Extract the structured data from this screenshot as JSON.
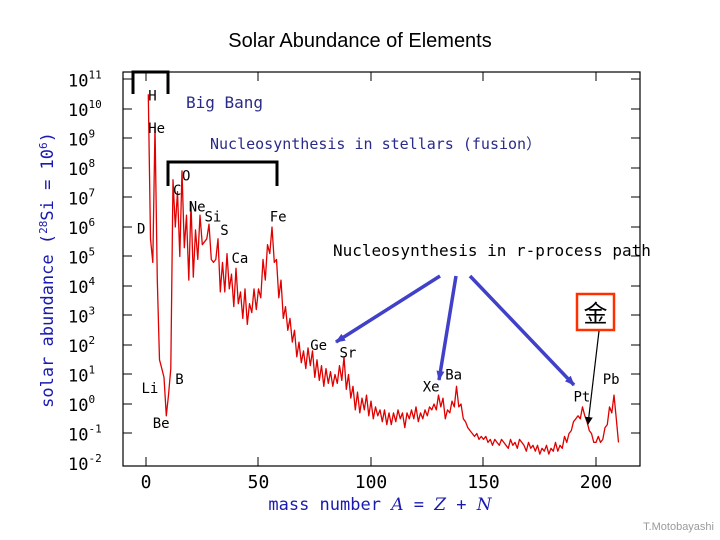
{
  "slide": {
    "title": "Solar Abundance of Elements",
    "credit": "T.Motobayashi"
  },
  "colors": {
    "curve": "#e00000",
    "arrows": "#4040c8",
    "gold_box": "#ff3000",
    "annotation_text": "#2a2a8a",
    "axis_label": "#1a1ab0"
  },
  "annotations": {
    "big_bang": "Big Bang",
    "fusion": "Nucleosynthesis in stellars (fusion）",
    "r_process": "Nucleosynthesis in r-process path",
    "gold": "金"
  },
  "chart_data": {
    "type": "line",
    "title": "Solar Abundance of Elements",
    "xlabel": "mass number A = Z + N",
    "ylabel": "solar abundance (28Si = 10^6)",
    "xlim": [
      -10,
      220
    ],
    "ylim": [
      -2,
      11
    ],
    "x_ticks": [
      "0",
      "50",
      "100",
      "150",
      "200"
    ],
    "x_tick_values": [
      0,
      50,
      100,
      150,
      200
    ],
    "y_ticks": [
      "10^11",
      "10^10",
      "10^9",
      "10^8",
      "10^7",
      "10^6",
      "10^5",
      "10^4",
      "10^3",
      "10^2",
      "10^1",
      "10^0",
      "10^-1",
      "10^-2"
    ],
    "y_tick_values": [
      11,
      10,
      9,
      8,
      7,
      6,
      5,
      4,
      3,
      2,
      1,
      0,
      -1,
      -2
    ],
    "element_labels": [
      {
        "label": "H",
        "x": 1,
        "y": 10.45
      },
      {
        "label": "He",
        "x": 1,
        "y": 9.35
      },
      {
        "label": "O",
        "x": 16,
        "y": 7.75
      },
      {
        "label": "C",
        "x": 12,
        "y": 7.25
      },
      {
        "label": "Ne",
        "x": 19,
        "y": 6.7
      },
      {
        "label": "Si",
        "x": 26,
        "y": 6.35
      },
      {
        "label": "S",
        "x": 33,
        "y": 5.9
      },
      {
        "label": "Fe",
        "x": 55,
        "y": 6.35
      },
      {
        "label": "D",
        "x": -4,
        "y": 5.95
      },
      {
        "label": "Ca",
        "x": 38,
        "y": 4.95
      },
      {
        "label": "Ge",
        "x": 73,
        "y": 2.0
      },
      {
        "label": "Sr",
        "x": 86,
        "y": 1.75
      },
      {
        "label": "Li",
        "x": -2,
        "y": 0.55
      },
      {
        "label": "B",
        "x": 13,
        "y": 0.85
      },
      {
        "label": "Be",
        "x": 3,
        "y": -0.65
      },
      {
        "label": "Ba",
        "x": 133,
        "y": 1.0
      },
      {
        "label": "Xe",
        "x": 123,
        "y": 0.6
      },
      {
        "label": "Pb",
        "x": 203,
        "y": 0.85
      },
      {
        "label": "Pt",
        "x": 190,
        "y": 0.25
      }
    ],
    "series": [
      {
        "name": "abundance",
        "points": [
          [
            1,
            10.5
          ],
          [
            2,
            5.6
          ],
          [
            3,
            4.8
          ],
          [
            4,
            9.4
          ],
          [
            5,
            4.2
          ],
          [
            6,
            1.5
          ],
          [
            7,
            1.2
          ],
          [
            8,
            0.9
          ],
          [
            9,
            -0.4
          ],
          [
            10,
            0.3
          ],
          [
            11,
            1.2
          ],
          [
            12,
            7.6
          ],
          [
            13,
            6.0
          ],
          [
            14,
            7.2
          ],
          [
            15,
            5.0
          ],
          [
            16,
            7.9
          ],
          [
            17,
            5.3
          ],
          [
            18,
            6.4
          ],
          [
            19,
            4.2
          ],
          [
            20,
            6.8
          ],
          [
            21,
            4.3
          ],
          [
            22,
            5.9
          ],
          [
            23,
            4.9
          ],
          [
            24,
            6.4
          ],
          [
            25,
            5.4
          ],
          [
            26,
            5.5
          ],
          [
            27,
            5.6
          ],
          [
            28,
            6.1
          ],
          [
            29,
            4.9
          ],
          [
            30,
            4.8
          ],
          [
            31,
            4.9
          ],
          [
            32,
            5.6
          ],
          [
            33,
            3.8
          ],
          [
            34,
            4.8
          ],
          [
            35,
            3.8
          ],
          [
            36,
            5.1
          ],
          [
            37,
            3.9
          ],
          [
            38,
            4.4
          ],
          [
            39,
            3.3
          ],
          [
            40,
            4.6
          ],
          [
            41,
            3.4
          ],
          [
            42,
            3.8
          ],
          [
            43,
            2.9
          ],
          [
            44,
            3.9
          ],
          [
            45,
            2.7
          ],
          [
            46,
            3.4
          ],
          [
            47,
            3.1
          ],
          [
            48,
            3.9
          ],
          [
            49,
            3.2
          ],
          [
            50,
            3.9
          ],
          [
            51,
            3.6
          ],
          [
            52,
            4.9
          ],
          [
            53,
            4.2
          ],
          [
            54,
            5.4
          ],
          [
            55,
            5.1
          ],
          [
            56,
            6.0
          ],
          [
            57,
            4.8
          ],
          [
            58,
            4.9
          ],
          [
            59,
            3.6
          ],
          [
            60,
            4.2
          ],
          [
            61,
            2.9
          ],
          [
            62,
            3.3
          ],
          [
            63,
            2.5
          ],
          [
            64,
            2.9
          ],
          [
            65,
            2.1
          ],
          [
            66,
            2.5
          ],
          [
            67,
            1.6
          ],
          [
            68,
            2.1
          ],
          [
            69,
            1.4
          ],
          [
            70,
            1.8
          ],
          [
            71,
            1.2
          ],
          [
            72,
            1.9
          ],
          [
            73,
            1.3
          ],
          [
            74,
            1.8
          ],
          [
            75,
            0.9
          ],
          [
            76,
            1.5
          ],
          [
            77,
            0.8
          ],
          [
            78,
            1.3
          ],
          [
            79,
            0.6
          ],
          [
            80,
            1.2
          ],
          [
            81,
            0.7
          ],
          [
            82,
            1.1
          ],
          [
            83,
            0.6
          ],
          [
            84,
            1.0
          ],
          [
            85,
            0.7
          ],
          [
            86,
            1.3
          ],
          [
            87,
            0.8
          ],
          [
            88,
            1.6
          ],
          [
            89,
            0.5
          ],
          [
            90,
            1.0
          ],
          [
            91,
            0.2
          ],
          [
            92,
            0.6
          ],
          [
            93,
            -0.2
          ],
          [
            94,
            0.4
          ],
          [
            95,
            -0.3
          ],
          [
            96,
            0.2
          ],
          [
            97,
            -0.2
          ],
          [
            98,
            0.3
          ],
          [
            99,
            -0.4
          ],
          [
            100,
            0.1
          ],
          [
            101,
            -0.5
          ],
          [
            102,
            -0.1
          ],
          [
            103,
            -0.4
          ],
          [
            104,
            -0.2
          ],
          [
            105,
            -0.6
          ],
          [
            106,
            -0.2
          ],
          [
            107,
            -0.7
          ],
          [
            108,
            -0.3
          ],
          [
            109,
            -0.7
          ],
          [
            110,
            -0.3
          ],
          [
            111,
            -0.6
          ],
          [
            112,
            -0.2
          ],
          [
            113,
            -0.5
          ],
          [
            114,
            -0.3
          ],
          [
            115,
            -0.8
          ],
          [
            116,
            -0.3
          ],
          [
            117,
            -0.5
          ],
          [
            118,
            -0.2
          ],
          [
            119,
            -0.5
          ],
          [
            120,
            -0.1
          ],
          [
            121,
            -0.6
          ],
          [
            122,
            -0.3
          ],
          [
            123,
            -0.5
          ],
          [
            124,
            -0.2
          ],
          [
            125,
            -0.4
          ],
          [
            126,
            -0.1
          ],
          [
            127,
            -0.2
          ],
          [
            128,
            0.0
          ],
          [
            129,
            -0.2
          ],
          [
            130,
            0.3
          ],
          [
            131,
            -0.1
          ],
          [
            132,
            0.2
          ],
          [
            133,
            -0.5
          ],
          [
            134,
            -0.2
          ],
          [
            135,
            -0.3
          ],
          [
            136,
            0.1
          ],
          [
            137,
            -0.1
          ],
          [
            138,
            0.6
          ],
          [
            139,
            -0.1
          ],
          [
            140,
            0.0
          ],
          [
            141,
            -0.5
          ],
          [
            142,
            -0.6
          ],
          [
            143,
            -0.8
          ],
          [
            144,
            -0.9
          ],
          [
            145,
            -1.0
          ],
          [
            146,
            -1.1
          ],
          [
            147,
            -1.0
          ],
          [
            148,
            -1.2
          ],
          [
            149,
            -1.1
          ],
          [
            150,
            -1.2
          ],
          [
            151,
            -1.1
          ],
          [
            152,
            -1.3
          ],
          [
            153,
            -1.2
          ],
          [
            154,
            -1.4
          ],
          [
            155,
            -1.2
          ],
          [
            156,
            -1.3
          ],
          [
            157,
            -1.4
          ],
          [
            158,
            -1.2
          ],
          [
            159,
            -1.3
          ],
          [
            160,
            -1.4
          ],
          [
            161,
            -1.5
          ],
          [
            162,
            -1.2
          ],
          [
            163,
            -1.4
          ],
          [
            164,
            -1.3
          ],
          [
            165,
            -1.5
          ],
          [
            166,
            -1.2
          ],
          [
            167,
            -1.3
          ],
          [
            168,
            -1.4
          ],
          [
            169,
            -1.6
          ],
          [
            170,
            -1.3
          ],
          [
            171,
            -1.5
          ],
          [
            172,
            -1.4
          ],
          [
            173,
            -1.6
          ],
          [
            174,
            -1.4
          ],
          [
            175,
            -1.7
          ],
          [
            176,
            -1.5
          ],
          [
            177,
            -1.6
          ],
          [
            178,
            -1.4
          ],
          [
            179,
            -1.7
          ],
          [
            180,
            -1.5
          ],
          [
            181,
            -1.6
          ],
          [
            182,
            -1.3
          ],
          [
            183,
            -1.6
          ],
          [
            184,
            -1.4
          ],
          [
            185,
            -1.5
          ],
          [
            186,
            -1.1
          ],
          [
            187,
            -1.3
          ],
          [
            188,
            -1.0
          ],
          [
            189,
            -0.9
          ],
          [
            190,
            -0.6
          ],
          [
            191,
            -0.5
          ],
          [
            192,
            -0.4
          ],
          [
            193,
            -0.5
          ],
          [
            194,
            -0.1
          ],
          [
            195,
            -0.4
          ],
          [
            196,
            -0.6
          ],
          [
            197,
            -0.9
          ],
          [
            198,
            -1.0
          ],
          [
            199,
            -1.3
          ],
          [
            200,
            -1.3
          ],
          [
            201,
            -1.1
          ],
          [
            202,
            -1.3
          ],
          [
            203,
            -1.2
          ],
          [
            204,
            -0.8
          ],
          [
            205,
            -0.7
          ],
          [
            206,
            -0.1
          ],
          [
            207,
            -0.3
          ],
          [
            208,
            0.3
          ],
          [
            209,
            -0.5
          ],
          [
            210,
            -1.3
          ]
        ]
      }
    ]
  }
}
